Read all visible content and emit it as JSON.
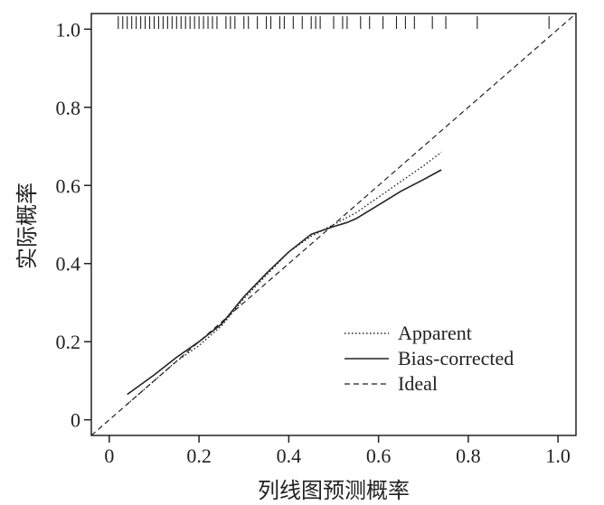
{
  "chart_data": {
    "type": "line",
    "title": "",
    "xlabel": "列线图预测概率",
    "ylabel": "实际概率",
    "xlim": [
      -0.04,
      1.04
    ],
    "ylim": [
      -0.04,
      1.04
    ],
    "xticks": [
      {
        "value": 0,
        "label": "0"
      },
      {
        "value": 0.2,
        "label": "0.2"
      },
      {
        "value": 0.4,
        "label": "0.4"
      },
      {
        "value": 0.6,
        "label": "0.6"
      },
      {
        "value": 0.8,
        "label": "0.8"
      },
      {
        "value": 1.0,
        "label": "1.0"
      }
    ],
    "yticks": [
      {
        "value": 0,
        "label": "0"
      },
      {
        "value": 0.2,
        "label": "0.2"
      },
      {
        "value": 0.4,
        "label": "0.4"
      },
      {
        "value": 0.6,
        "label": "0.6"
      },
      {
        "value": 0.8,
        "label": "0.8"
      },
      {
        "value": 1.0,
        "label": "1.0"
      }
    ],
    "legend_position": "bottom-right",
    "series": [
      {
        "name": "Apparent",
        "style": "dotted",
        "x": [
          0.04,
          0.1,
          0.15,
          0.2,
          0.25,
          0.3,
          0.35,
          0.4,
          0.45,
          0.5,
          0.55,
          0.6,
          0.65,
          0.7,
          0.74
        ],
        "y": [
          0.04,
          0.1,
          0.15,
          0.19,
          0.24,
          0.31,
          0.37,
          0.43,
          0.47,
          0.5,
          0.53,
          0.57,
          0.61,
          0.65,
          0.685
        ]
      },
      {
        "name": "Bias-corrected",
        "style": "solid",
        "x": [
          0.04,
          0.1,
          0.15,
          0.2,
          0.25,
          0.3,
          0.35,
          0.4,
          0.45,
          0.5,
          0.53,
          0.55,
          0.6,
          0.65,
          0.7,
          0.74
        ],
        "y": [
          0.065,
          0.115,
          0.16,
          0.2,
          0.245,
          0.315,
          0.375,
          0.43,
          0.475,
          0.495,
          0.505,
          0.515,
          0.55,
          0.585,
          0.615,
          0.64
        ]
      },
      {
        "name": "Ideal",
        "style": "dashed",
        "x": [
          -0.04,
          1.04
        ],
        "y": [
          -0.04,
          1.04
        ]
      }
    ],
    "rug_x": [
      0.02,
      0.03,
      0.04,
      0.05,
      0.06,
      0.07,
      0.08,
      0.09,
      0.1,
      0.11,
      0.12,
      0.13,
      0.14,
      0.15,
      0.16,
      0.17,
      0.18,
      0.19,
      0.2,
      0.21,
      0.22,
      0.23,
      0.24,
      0.26,
      0.27,
      0.28,
      0.3,
      0.31,
      0.33,
      0.35,
      0.36,
      0.38,
      0.39,
      0.41,
      0.43,
      0.45,
      0.46,
      0.47,
      0.5,
      0.52,
      0.53,
      0.56,
      0.58,
      0.61,
      0.64,
      0.66,
      0.68,
      0.72,
      0.75,
      0.82,
      0.98
    ],
    "colors": {
      "axis": "#222222",
      "series": "#222222"
    }
  }
}
